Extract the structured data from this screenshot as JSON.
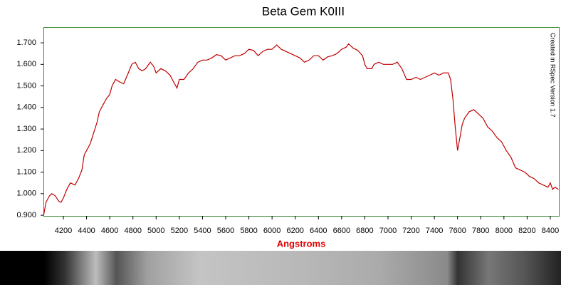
{
  "chart_data": {
    "type": "line",
    "title": "Beta Gem K0III",
    "x_label": "Angstroms",
    "annotation": "Created in RSpec Version 1.7",
    "xlim": [
      4028,
      8480
    ],
    "ylim": [
      0.897,
      1.773
    ],
    "xticks": [
      4200,
      4400,
      4600,
      4800,
      5000,
      5200,
      5400,
      5600,
      5800,
      6000,
      6200,
      6400,
      6600,
      6800,
      7000,
      7200,
      7400,
      7600,
      7800,
      8000,
      8200,
      8400
    ],
    "yticks": [
      {
        "value": 0.9,
        "label": "0.900"
      },
      {
        "value": 1.0,
        "label": "1.000"
      },
      {
        "value": 1.1,
        "label": "1.100"
      },
      {
        "value": 1.2,
        "label": "1.200"
      },
      {
        "value": 1.3,
        "label": "1.300"
      },
      {
        "value": 1.4,
        "label": "1.400"
      },
      {
        "value": 1.5,
        "label": "1.500"
      },
      {
        "value": 1.6,
        "label": "1.600"
      },
      {
        "value": 1.7,
        "label": "1.700"
      }
    ],
    "x": [
      4030,
      4050,
      4080,
      4100,
      4130,
      4160,
      4180,
      4200,
      4230,
      4260,
      4300,
      4330,
      4360,
      4380,
      4400,
      4430,
      4460,
      4490,
      4510,
      4540,
      4570,
      4600,
      4620,
      4650,
      4680,
      4720,
      4760,
      4790,
      4820,
      4850,
      4880,
      4910,
      4950,
      4980,
      5000,
      5040,
      5080,
      5120,
      5160,
      5180,
      5200,
      5240,
      5280,
      5320,
      5360,
      5400,
      5440,
      5480,
      5520,
      5560,
      5600,
      5640,
      5680,
      5720,
      5760,
      5800,
      5840,
      5880,
      5920,
      5960,
      6000,
      6040,
      6080,
      6120,
      6160,
      6200,
      6240,
      6280,
      6320,
      6360,
      6400,
      6440,
      6480,
      6520,
      6560,
      6600,
      6640,
      6660,
      6700,
      6740,
      6780,
      6800,
      6820,
      6860,
      6880,
      6920,
      6960,
      7000,
      7040,
      7080,
      7120,
      7160,
      7200,
      7240,
      7280,
      7320,
      7360,
      7400,
      7440,
      7480,
      7520,
      7540,
      7560,
      7580,
      7600,
      7620,
      7640,
      7660,
      7700,
      7740,
      7780,
      7820,
      7860,
      7900,
      7940,
      7980,
      8020,
      8060,
      8100,
      8140,
      8180,
      8220,
      8260,
      8300,
      8340,
      8380,
      8400,
      8420,
      8440,
      8470
    ],
    "series": [
      {
        "name": "Beta Gem K0III",
        "color": "#c00000",
        "values": [
          0.9,
          0.96,
          0.99,
          1.0,
          0.99,
          0.965,
          0.96,
          0.98,
          1.02,
          1.05,
          1.04,
          1.07,
          1.11,
          1.18,
          1.2,
          1.23,
          1.28,
          1.33,
          1.38,
          1.41,
          1.44,
          1.46,
          1.5,
          1.53,
          1.52,
          1.51,
          1.56,
          1.6,
          1.61,
          1.58,
          1.57,
          1.58,
          1.61,
          1.59,
          1.56,
          1.58,
          1.57,
          1.55,
          1.51,
          1.49,
          1.53,
          1.53,
          1.56,
          1.58,
          1.61,
          1.62,
          1.62,
          1.63,
          1.645,
          1.64,
          1.62,
          1.63,
          1.64,
          1.64,
          1.65,
          1.67,
          1.665,
          1.64,
          1.66,
          1.67,
          1.67,
          1.69,
          1.67,
          1.66,
          1.65,
          1.64,
          1.63,
          1.61,
          1.62,
          1.64,
          1.64,
          1.62,
          1.635,
          1.64,
          1.65,
          1.67,
          1.68,
          1.695,
          1.675,
          1.665,
          1.64,
          1.6,
          1.58,
          1.58,
          1.6,
          1.61,
          1.6,
          1.6,
          1.6,
          1.61,
          1.58,
          1.53,
          1.53,
          1.54,
          1.53,
          1.54,
          1.55,
          1.56,
          1.55,
          1.56,
          1.56,
          1.53,
          1.44,
          1.31,
          1.2,
          1.26,
          1.32,
          1.35,
          1.38,
          1.39,
          1.37,
          1.35,
          1.31,
          1.29,
          1.26,
          1.24,
          1.2,
          1.17,
          1.12,
          1.11,
          1.1,
          1.08,
          1.07,
          1.05,
          1.04,
          1.03,
          1.05,
          1.02,
          1.03,
          1.02
        ]
      }
    ]
  }
}
